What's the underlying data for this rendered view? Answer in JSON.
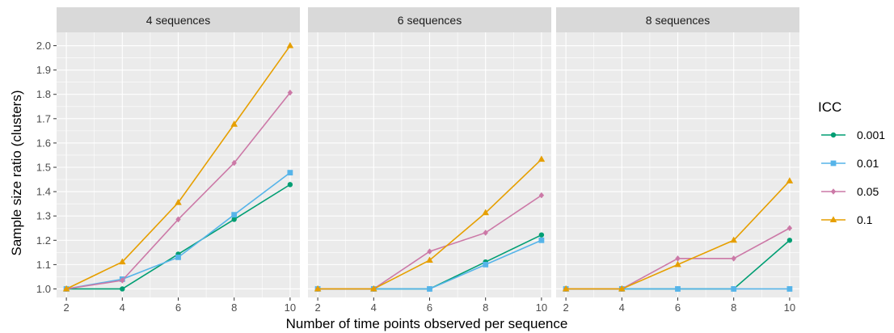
{
  "chart_data": {
    "type": "line",
    "xlabel": "Number of time points observed per sequence",
    "ylabel": "Sample size ratio (clusters)",
    "x_ticks": [
      2,
      4,
      6,
      8,
      10
    ],
    "y_ticks": [
      "1.0",
      "1.1",
      "1.2",
      "1.3",
      "1.4",
      "1.5",
      "1.6",
      "1.7",
      "1.8",
      "1.9",
      "2.0"
    ],
    "xlim": [
      1.65,
      10.35
    ],
    "ylim": [
      0.965,
      2.055
    ],
    "grid": true,
    "legend": {
      "title": "ICC",
      "placement": "right",
      "entries": [
        {
          "label": "0.001",
          "color": "#009E73",
          "shape": "circle"
        },
        {
          "label": "0.01",
          "color": "#56B4E9",
          "shape": "square"
        },
        {
          "label": "0.05",
          "color": "#CC79A7",
          "shape": "diamond"
        },
        {
          "label": "0.1",
          "color": "#E69F00",
          "shape": "triangle"
        }
      ]
    },
    "panels": [
      {
        "title": "4 sequences",
        "x": [
          2,
          4,
          6,
          8,
          10
        ],
        "series": [
          {
            "name": "0.001",
            "values": [
              1.0,
              1.0,
              1.143,
              1.286,
              1.429
            ]
          },
          {
            "name": "0.01",
            "values": [
              1.0,
              1.04,
              1.13,
              1.305,
              1.478
            ]
          },
          {
            "name": "0.05",
            "values": [
              1.0,
              1.035,
              1.286,
              1.518,
              1.807
            ]
          },
          {
            "name": "0.1",
            "values": [
              1.0,
              1.111,
              1.355,
              1.677,
              2.0
            ]
          }
        ]
      },
      {
        "title": "6 sequences",
        "x": [
          2,
          4,
          6,
          8,
          10
        ],
        "series": [
          {
            "name": "0.001",
            "values": [
              1.0,
              1.0,
              1.0,
              1.111,
              1.222
            ]
          },
          {
            "name": "0.01",
            "values": [
              1.0,
              1.0,
              1.0,
              1.1,
              1.2
            ]
          },
          {
            "name": "0.05",
            "values": [
              1.0,
              1.0,
              1.154,
              1.231,
              1.385
            ]
          },
          {
            "name": "0.1",
            "values": [
              1.0,
              1.0,
              1.118,
              1.313,
              1.533
            ]
          }
        ]
      },
      {
        "title": "8 sequences",
        "x": [
          2,
          4,
          6,
          8,
          10
        ],
        "series": [
          {
            "name": "0.001",
            "values": [
              1.0,
              1.0,
              1.0,
              1.0,
              1.2
            ]
          },
          {
            "name": "0.01",
            "values": [
              1.0,
              1.0,
              1.0,
              1.0,
              1.0
            ]
          },
          {
            "name": "0.05",
            "values": [
              1.0,
              1.0,
              1.125,
              1.125,
              1.25
            ]
          },
          {
            "name": "0.1",
            "values": [
              1.0,
              1.0,
              1.1,
              1.2,
              1.444
            ]
          }
        ]
      }
    ]
  }
}
